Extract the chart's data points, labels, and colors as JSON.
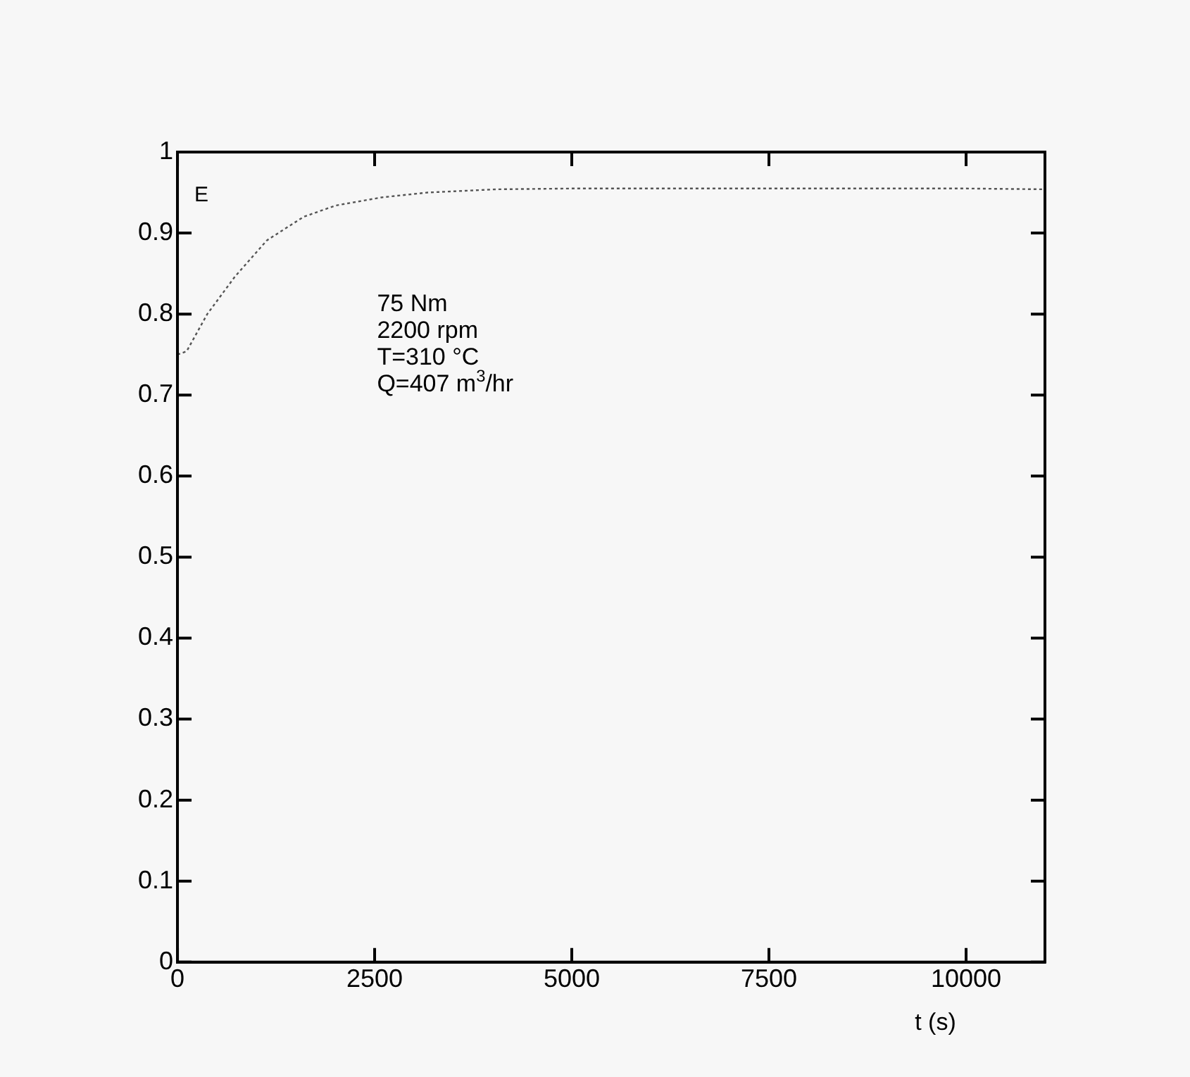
{
  "chart_data": {
    "type": "line",
    "xlabel": "t (s)",
    "ylabel": "E",
    "x": [
      0,
      116,
      378,
      727,
      1134,
      1599,
      2006,
      2587,
      3169,
      4041,
      5000,
      6000,
      7000,
      8000,
      9000,
      10000,
      11000
    ],
    "series": [
      {
        "color": "#555555",
        "values": [
          0.75,
          0.754,
          0.8,
          0.846,
          0.891,
          0.92,
          0.934,
          0.944,
          0.95,
          0.954,
          0.955,
          0.955,
          0.955,
          0.955,
          0.955,
          0.955,
          0.954
        ]
      }
    ],
    "xlim": [
      0,
      11000
    ],
    "xticks": [
      0,
      2500,
      5000,
      7500,
      10000
    ],
    "ylim": [
      0,
      1
    ],
    "yticks": [
      0,
      0.1,
      0.2,
      0.3,
      0.4,
      0.5,
      0.6,
      0.7,
      0.8,
      0.9,
      1
    ],
    "grid": false,
    "legend": false,
    "marker": "none",
    "line_style": "dotted",
    "annotations": [
      "75 Nm",
      "2200 rpm",
      "T=310 °C",
      "Q=407 m$^{3}$/hr"
    ]
  }
}
